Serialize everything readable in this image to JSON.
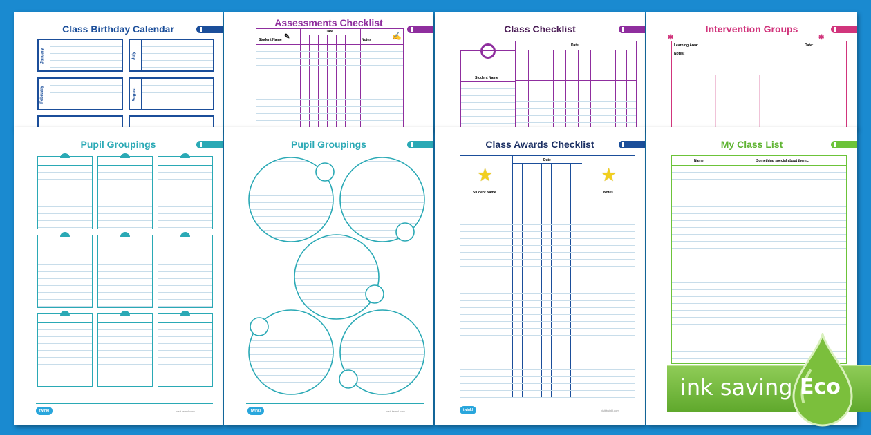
{
  "pages": {
    "birthday": {
      "title": "Class Birthday Calendar",
      "months": [
        "January",
        "July",
        "February",
        "August"
      ]
    },
    "assessments": {
      "title": "Assessments Checklist",
      "student_name": "Student Name",
      "date": "Date",
      "notes": "Notes"
    },
    "class_checklist": {
      "title": "Class Checklist",
      "student_name": "Student Name",
      "date": "Date"
    },
    "intervention": {
      "title": "Intervention Groups",
      "learning_area": "Learning Area:",
      "date": "Date:",
      "notes": "Notes:"
    },
    "pupil_boxes": {
      "title": "Pupil Groupings"
    },
    "pupil_circles": {
      "title": "Pupil Groupings"
    },
    "awards": {
      "title": "Class Awards Checklist",
      "student_name": "Student Name",
      "date": "Date",
      "notes": "Notes"
    },
    "class_list": {
      "title": "My Class List",
      "name": "Name",
      "special": "Something special about them..."
    }
  },
  "footer": {
    "logo": "twinkl",
    "url": "visit twinkl.com"
  },
  "badge": {
    "text": "ink saving",
    "eco": "Eco"
  },
  "colors": {
    "bg": "#1a8ad0",
    "navy": "#1b4e9a",
    "purple": "#8f2e9e",
    "magenta": "#d1357c",
    "teal": "#2aa9b5",
    "green": "#6cc339"
  }
}
